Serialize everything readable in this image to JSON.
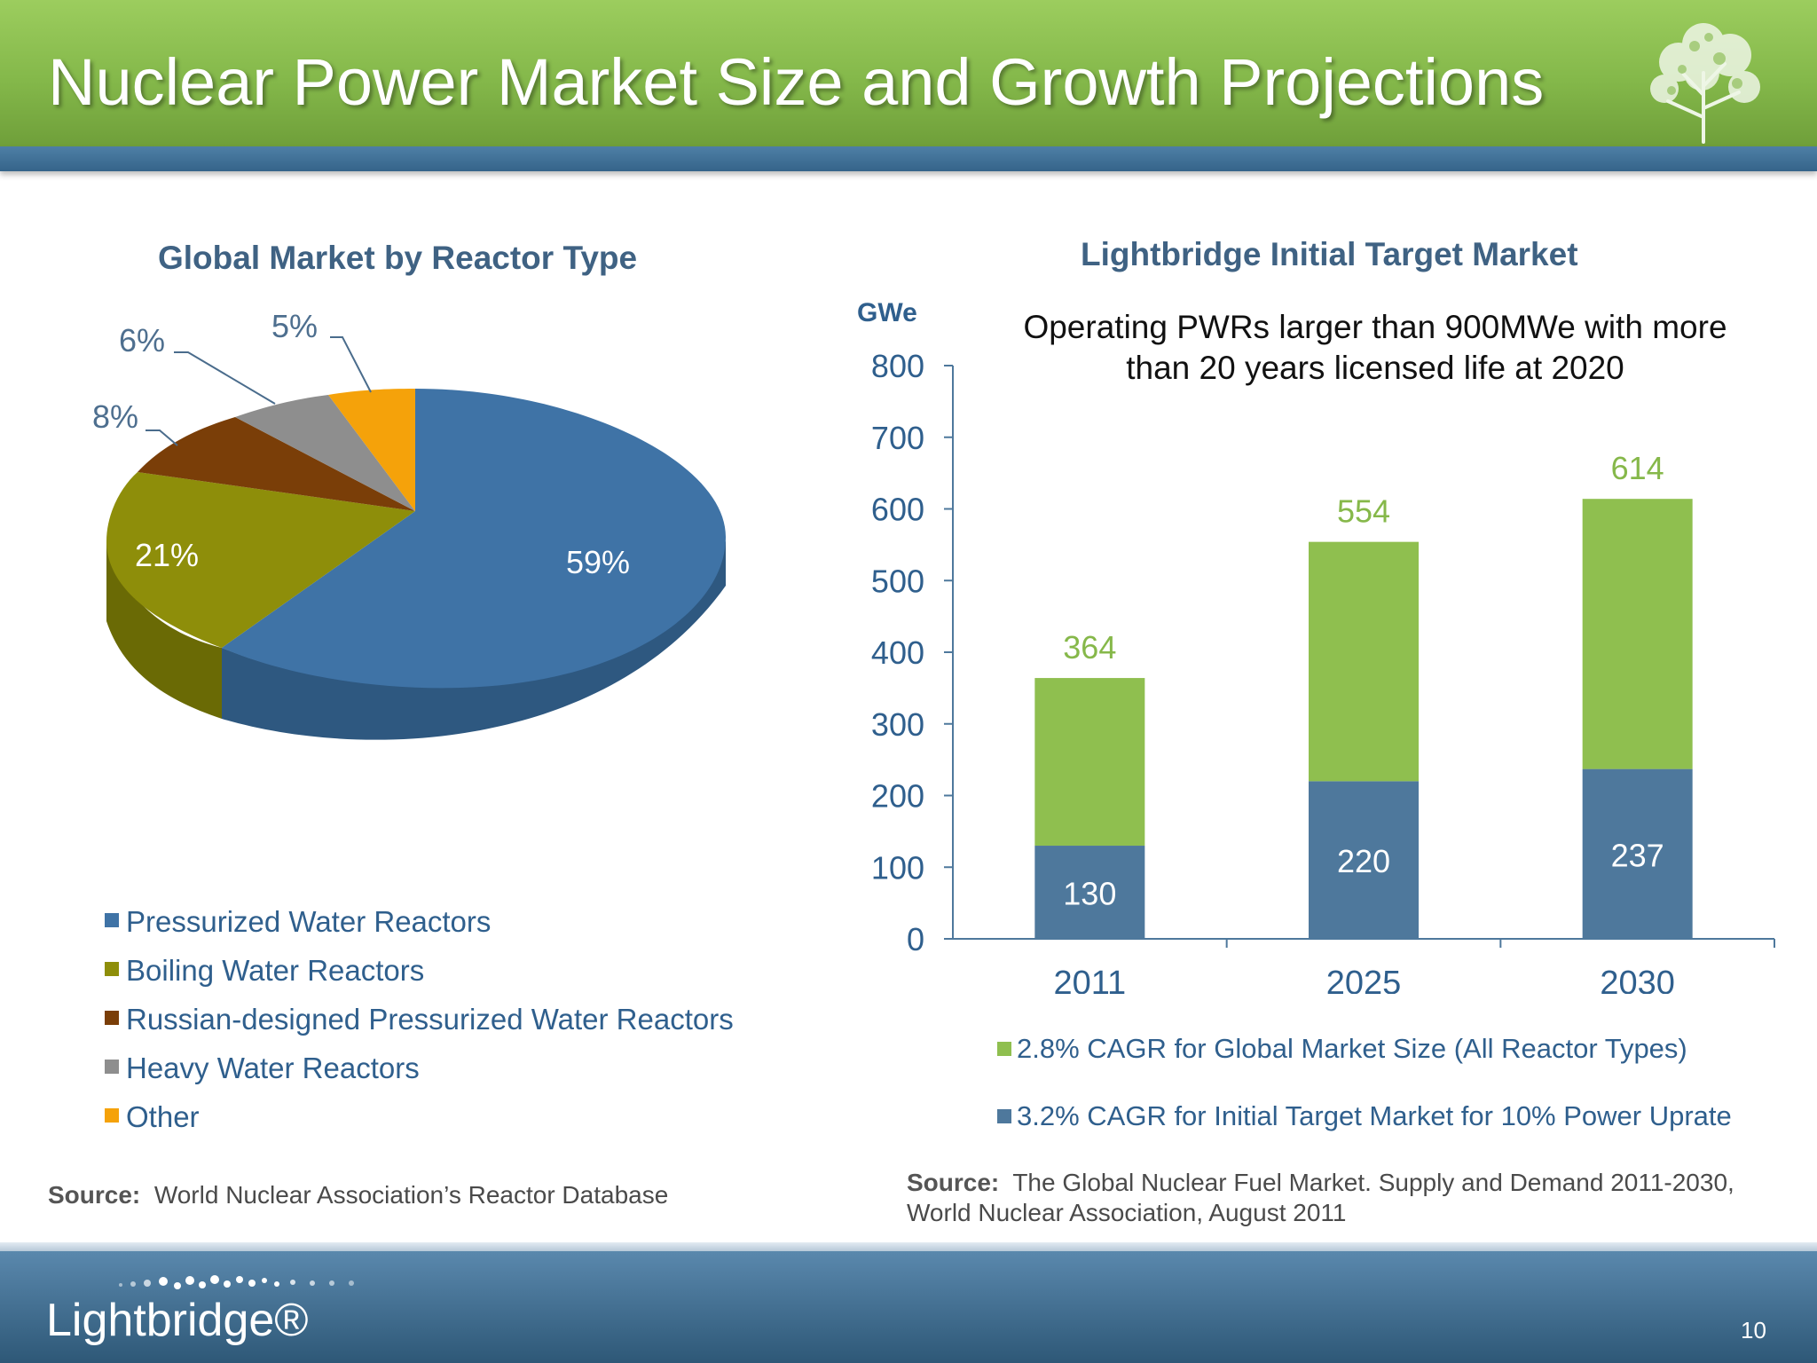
{
  "slide": {
    "title": "Nuclear Power Market Size and Growth Projections",
    "brand": "Lightbridge®",
    "page_number": "10"
  },
  "colors": {
    "pwr": "#3f73a6",
    "bwr": "#8e8e0a",
    "rpwr": "#7a3e08",
    "hwr": "#8e8e8e",
    "other": "#f5a20a",
    "bar_green": "#8fbf4f",
    "bar_blue": "#4e789c",
    "axis": "#4e789c"
  },
  "pie": {
    "title": "Global Market by Reactor Type",
    "source_label": "Source:",
    "source_text": "World Nuclear Association’s Reactor Database"
  },
  "bar": {
    "title": "Lightbridge Initial Target Market",
    "subtitle_line1": "Operating PWRs larger than 900MWe with more",
    "subtitle_line2": "than 20 years licensed life at 2020",
    "y_unit": "GWe",
    "source_label": "Source:",
    "source_line1": "The Global Nuclear Fuel Market. Supply and Demand 2011-2030,",
    "source_line2": "World Nuclear Association, August 2011"
  },
  "chart_data": [
    {
      "type": "pie",
      "title": "Global Market by Reactor Type",
      "labels": [
        "Pressurized Water Reactors",
        "Boiling Water Reactors",
        "Russian-designed Pressurized Water Reactors",
        "Heavy Water Reactors",
        "Other"
      ],
      "values": [
        59,
        21,
        8,
        6,
        5
      ],
      "value_labels": [
        "59%",
        "21%",
        "8%",
        "6%",
        "5%"
      ],
      "legend_position": "bottom-left",
      "style": "3d"
    },
    {
      "type": "bar",
      "stacked": true,
      "title": "Lightbridge Initial Target Market",
      "categories": [
        "2011",
        "2025",
        "2030"
      ],
      "series": [
        {
          "name": "3.2% CAGR for Initial Target Market for 10% Power Uprate",
          "values": [
            130,
            220,
            237
          ]
        },
        {
          "name": "2.8% CAGR for Global Market Size (All Reactor Types)",
          "values": [
            234,
            334,
            377
          ]
        }
      ],
      "bar_labels_inner": [
        "130",
        "220",
        "237"
      ],
      "bar_labels_total": [
        "364",
        "554",
        "614"
      ],
      "totals": [
        364,
        554,
        614
      ],
      "ylabel": "GWe",
      "ylim": [
        0,
        800
      ],
      "yticks": [
        0,
        100,
        200,
        300,
        400,
        500,
        600,
        700,
        800
      ],
      "grid": false,
      "legend_position": "bottom"
    }
  ]
}
